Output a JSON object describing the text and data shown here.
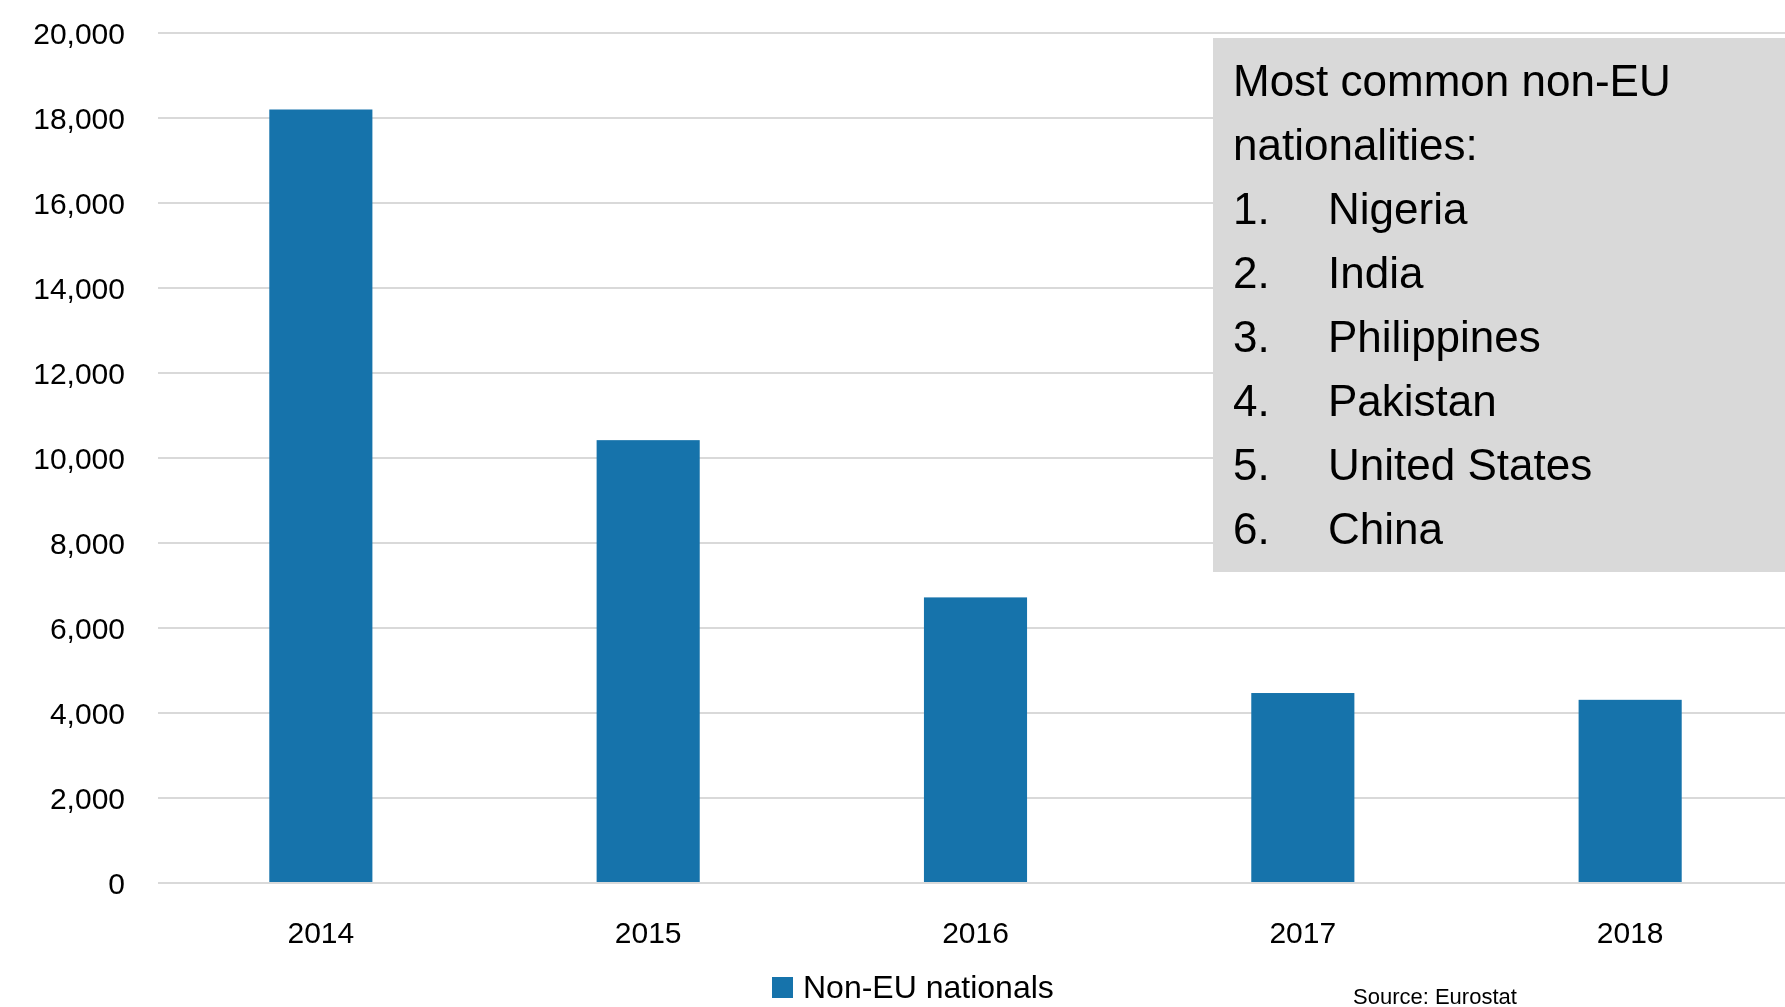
{
  "chart_data": {
    "type": "bar",
    "categories": [
      "2014",
      "2015",
      "2016",
      "2017",
      "2018"
    ],
    "series": [
      {
        "name": "Non-EU nationals",
        "color": "#1673ab",
        "values": [
          18200,
          10420,
          6720,
          4470,
          4310
        ]
      }
    ],
    "ylim": [
      0,
      20000
    ],
    "yticks": [
      {
        "value": 0,
        "label": "0"
      },
      {
        "value": 2000,
        "label": "2,000"
      },
      {
        "value": 4000,
        "label": "4,000"
      },
      {
        "value": 6000,
        "label": "6,000"
      },
      {
        "value": 8000,
        "label": "8,000"
      },
      {
        "value": 10000,
        "label": "10,000"
      },
      {
        "value": 12000,
        "label": "12,000"
      },
      {
        "value": 14000,
        "label": "14,000"
      },
      {
        "value": 16000,
        "label": "16,000"
      },
      {
        "value": 18000,
        "label": "18,000"
      },
      {
        "value": 20000,
        "label": "20,000"
      }
    ],
    "grid": "y",
    "legend": "bottom",
    "annotations": [
      "Most common non-EU nationalities:",
      "1.\tNigeria",
      "2.\tIndia",
      "3.\tPhilippines",
      "4.\tPakistan",
      "5.\tUnited States",
      "6.\tChina",
      "Source: Eurostat"
    ]
  }
}
